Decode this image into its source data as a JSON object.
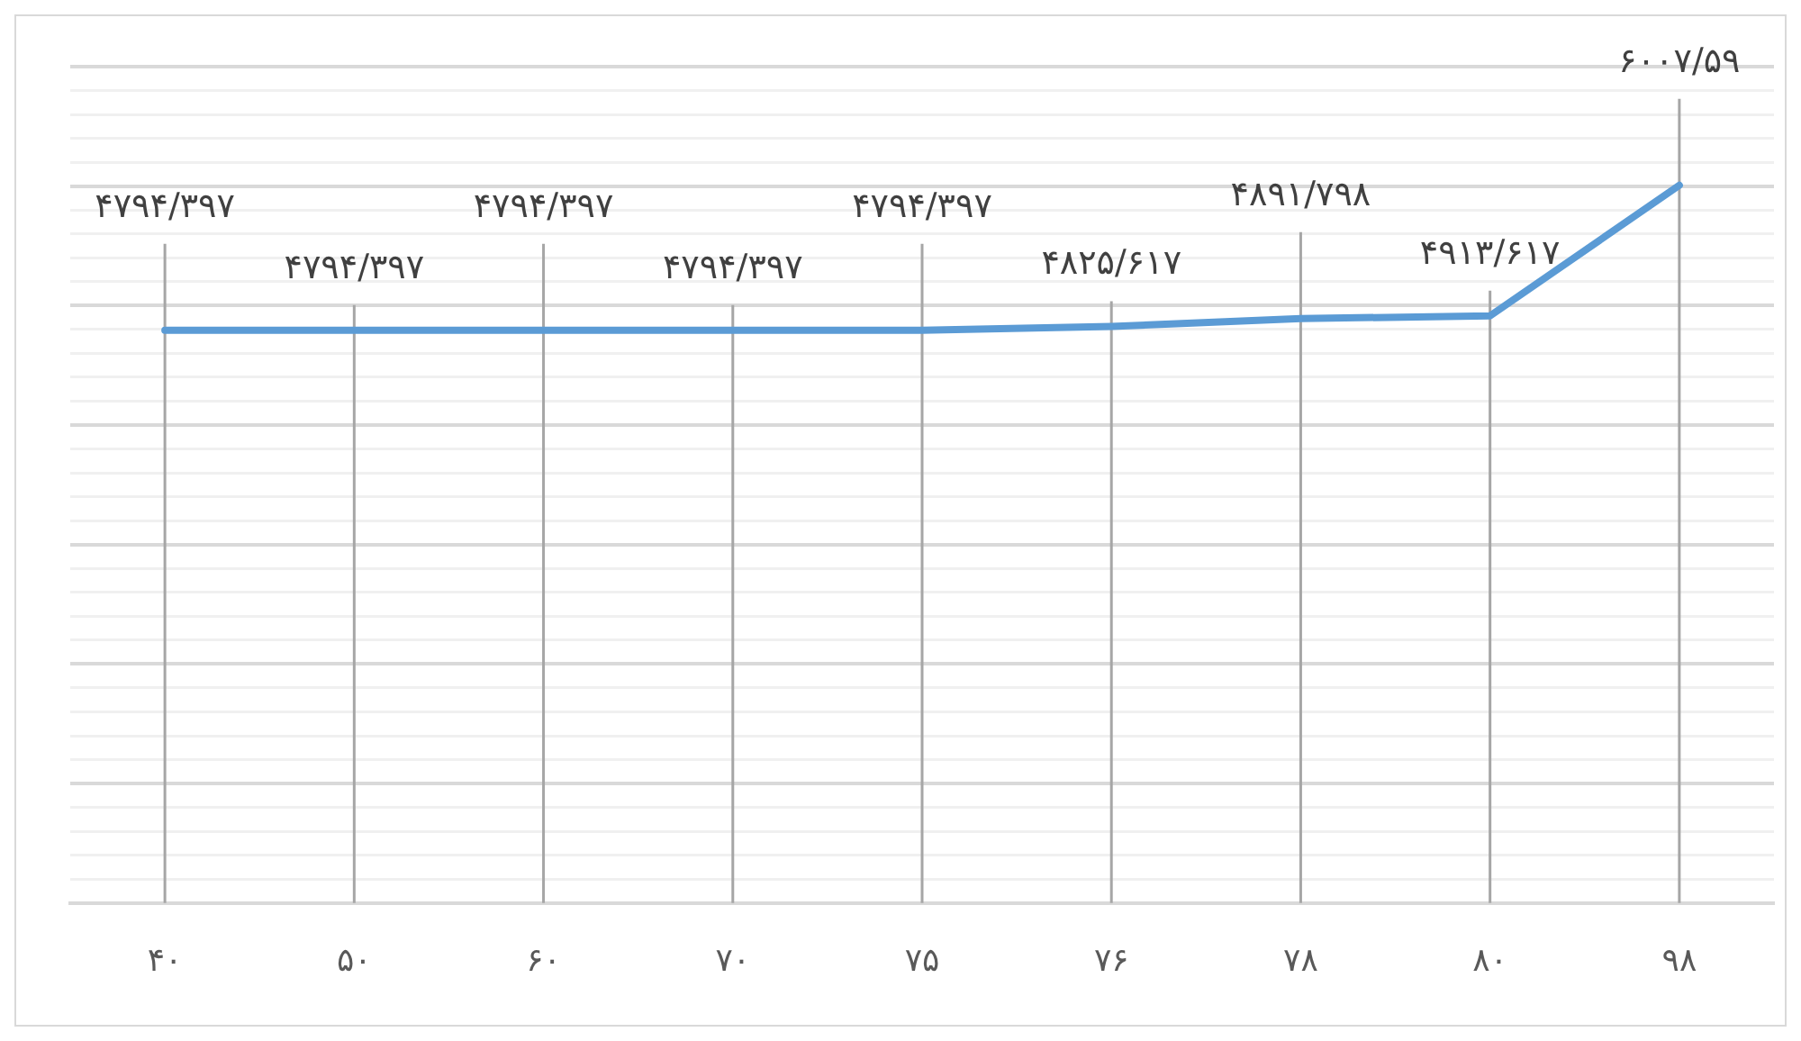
{
  "chart_data": {
    "type": "line",
    "categories": [
      "۴۰",
      "۵۰",
      "۶۰",
      "۷۰",
      "۷۵",
      "۷۶",
      "۷۸",
      "۸۰",
      "۹۸"
    ],
    "series": [
      {
        "color": "#5b9bd5",
        "values": [
          4794.397,
          4794.397,
          4794.397,
          4794.397,
          4794.397,
          4825.617,
          4891.798,
          4913.617,
          6007.59
        ],
        "value_labels": [
          "۴۷۹۴/۳۹۷",
          "۴۷۹۴/۳۹۷",
          "۴۷۹۴/۳۹۷",
          "۴۷۹۴/۳۹۷",
          "۴۷۹۴/۳۹۷",
          "۴۸۲۵/۶۱۷",
          "۴۸۹۱/۷۹۸",
          "۴۹۱۳/۶۱۷",
          "۶۰۰۷/۵۹"
        ]
      }
    ],
    "ylim": [
      0,
      7000
    ],
    "yticks": [
      {
        "value": 0,
        "label": null
      },
      {
        "value": 200,
        "label": null
      },
      {
        "value": 400,
        "label": null
      },
      {
        "value": 600,
        "label": null
      },
      {
        "value": 800,
        "label": null
      },
      {
        "value": 1000,
        "label": null
      },
      {
        "value": 1200,
        "label": null
      },
      {
        "value": 1400,
        "label": null
      },
      {
        "value": 1600,
        "label": null
      },
      {
        "value": 1800,
        "label": null
      },
      {
        "value": 2000,
        "label": null
      },
      {
        "value": 2200,
        "label": null
      },
      {
        "value": 2400,
        "label": null
      },
      {
        "value": 2600,
        "label": null
      },
      {
        "value": 2800,
        "label": null
      },
      {
        "value": 3000,
        "label": null
      },
      {
        "value": 3200,
        "label": null
      },
      {
        "value": 3400,
        "label": null
      },
      {
        "value": 3600,
        "label": null
      },
      {
        "value": 3800,
        "label": null
      },
      {
        "value": 4000,
        "label": null
      },
      {
        "value": 4200,
        "label": null
      },
      {
        "value": 4400,
        "label": null
      },
      {
        "value": 4600,
        "label": null
      },
      {
        "value": 4800,
        "label": null
      },
      {
        "value": 5000,
        "label": null
      },
      {
        "value": 5200,
        "label": null
      },
      {
        "value": 5400,
        "label": null
      },
      {
        "value": 5600,
        "label": null
      },
      {
        "value": 5800,
        "label": null
      },
      {
        "value": 6000,
        "label": null
      },
      {
        "value": 6200,
        "label": null
      },
      {
        "value": 6400,
        "label": null
      },
      {
        "value": 6600,
        "label": null
      },
      {
        "value": 6800,
        "label": null
      },
      {
        "value": 7000,
        "label": null
      }
    ],
    "tick_labels": "x",
    "grid": true,
    "legend": false,
    "marker": "none",
    "line_style": "solid"
  }
}
